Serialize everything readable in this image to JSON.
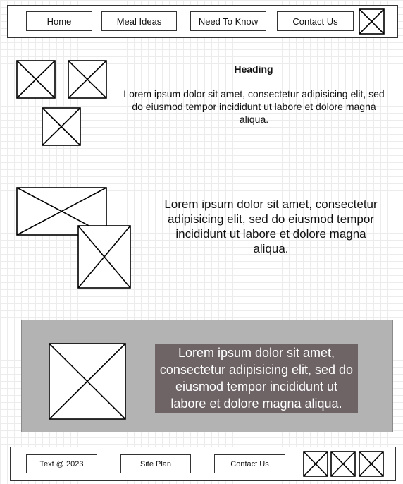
{
  "nav": {
    "items": [
      {
        "label": "Home"
      },
      {
        "label": "Meal Ideas"
      },
      {
        "label": "Need To Know"
      },
      {
        "label": "Contact Us"
      }
    ]
  },
  "section1": {
    "heading": "Heading",
    "body": "Lorem ipsum dolor sit amet, consectetur adipisicing elit, sed do eiusmod tempor incididunt ut labore et dolore magna aliqua."
  },
  "section2": {
    "body": "Lorem ipsum dolor sit amet, consectetur adipisicing elit, sed do eiusmod tempor incididunt ut labore et dolore magna aliqua."
  },
  "section3": {
    "body": "Lorem ipsum dolor sit amet, consectetur adipisicing elit, sed do eiusmod tempor incididunt ut labore et dolore magna aliqua.",
    "band_color": "#b3b3b3",
    "text_bg_color": "#6e6466"
  },
  "footer": {
    "copyright": "Text @ 2023",
    "site_plan": "Site Plan",
    "contact": "Contact Us"
  }
}
